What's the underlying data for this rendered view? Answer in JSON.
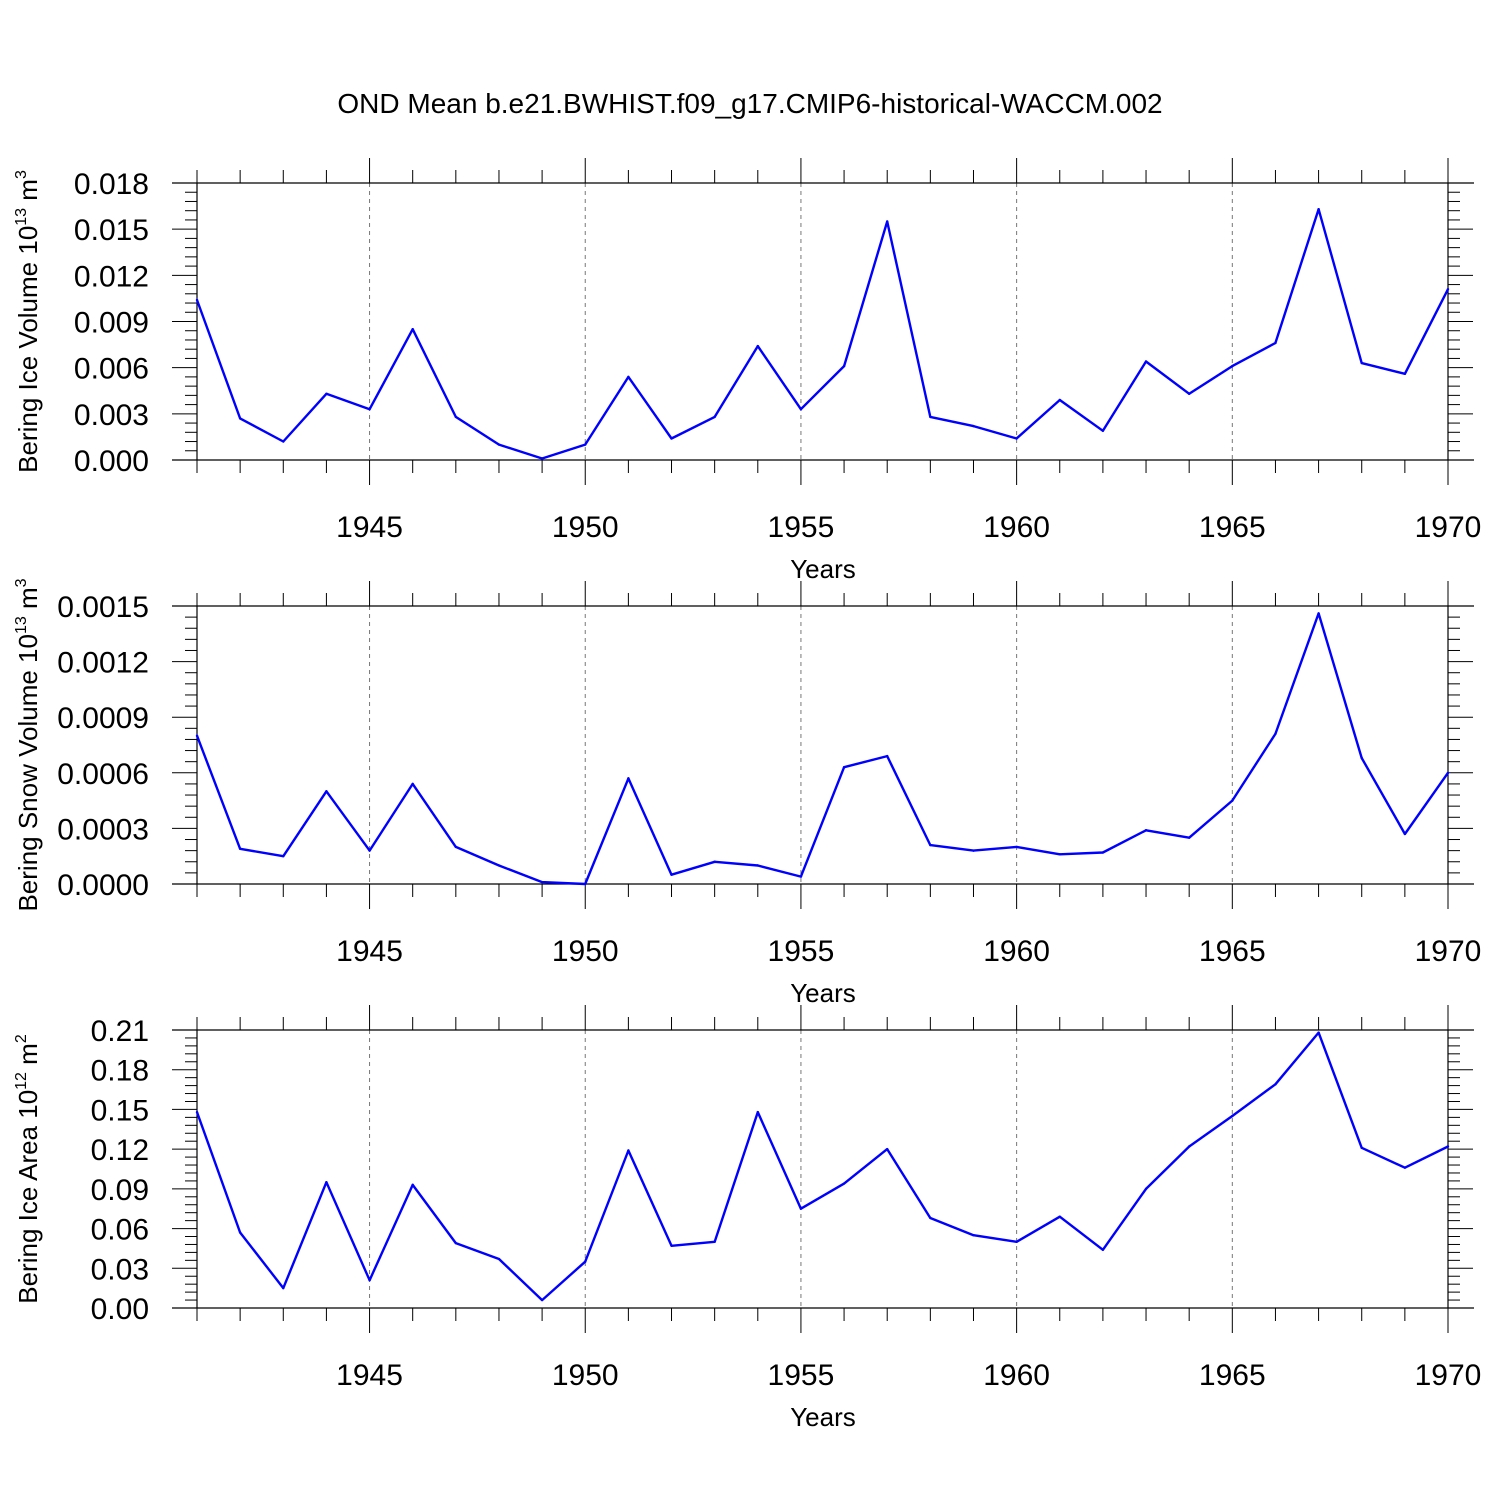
{
  "title": "OND Mean b.e21.BWHIST.f09_g17.CMIP6-historical-WACCM.002",
  "colors": {
    "line": "#0000ff",
    "axis": "#000000",
    "grid": "#777777"
  },
  "chart_data": [
    {
      "type": "line",
      "title": "",
      "xlabel": "Years",
      "ylabel": "Bering Ice Volume 10",
      "ylabel_sup1": "13",
      "ylabel_unit": " m",
      "ylabel_sup2": "3",
      "xlim": [
        1941,
        1970
      ],
      "ylim": [
        0,
        0.018
      ],
      "xticks": [
        "1945",
        "1950",
        "1955",
        "1960",
        "1965",
        "1970"
      ],
      "yticks": [
        "0.000",
        "0.003",
        "0.006",
        "0.009",
        "0.012",
        "0.015",
        "0.018"
      ],
      "grid": "vertical dashed at major x ticks",
      "x": [
        1941,
        1942,
        1943,
        1944,
        1945,
        1946,
        1947,
        1948,
        1949,
        1950,
        1951,
        1952,
        1953,
        1954,
        1955,
        1956,
        1957,
        1958,
        1959,
        1960,
        1961,
        1962,
        1963,
        1964,
        1965,
        1966,
        1967,
        1968,
        1969,
        1970
      ],
      "series": [
        {
          "values": [
            0.0104,
            0.0027,
            0.0012,
            0.0043,
            0.0033,
            0.0085,
            0.0028,
            0.001,
            0.0001,
            0.001,
            0.0054,
            0.0014,
            0.0028,
            0.0074,
            0.0033,
            0.0061,
            0.0155,
            0.0028,
            0.0022,
            0.0014,
            0.0039,
            0.0019,
            0.0064,
            0.0043,
            0.0061,
            0.0076,
            0.0163,
            0.0063,
            0.0056,
            0.0111
          ]
        }
      ]
    },
    {
      "type": "line",
      "title": "",
      "xlabel": "Years",
      "ylabel": "Bering Snow Volume 10",
      "ylabel_sup1": "13",
      "ylabel_unit": " m",
      "ylabel_sup2": "3",
      "xlim": [
        1941,
        1970
      ],
      "ylim": [
        0,
        0.0015
      ],
      "xticks": [
        "1945",
        "1950",
        "1955",
        "1960",
        "1965",
        "1970"
      ],
      "yticks": [
        "0.0000",
        "0.0003",
        "0.0006",
        "0.0009",
        "0.0012",
        "0.0015"
      ],
      "grid": "vertical dashed at major x ticks",
      "x": [
        1941,
        1942,
        1943,
        1944,
        1945,
        1946,
        1947,
        1948,
        1949,
        1950,
        1951,
        1952,
        1953,
        1954,
        1955,
        1956,
        1957,
        1958,
        1959,
        1960,
        1961,
        1962,
        1963,
        1964,
        1965,
        1966,
        1967,
        1968,
        1969,
        1970
      ],
      "series": [
        {
          "values": [
            0.0008,
            0.00019,
            0.00015,
            0.0005,
            0.00018,
            0.00054,
            0.0002,
            0.0001,
            1e-05,
            0.0,
            0.00057,
            5e-05,
            0.00012,
            0.0001,
            4e-05,
            0.00063,
            0.00069,
            0.00021,
            0.00018,
            0.0002,
            0.00016,
            0.00017,
            0.00029,
            0.00025,
            0.00045,
            0.00081,
            0.00146,
            0.00068,
            0.00027,
            0.0006
          ]
        }
      ]
    },
    {
      "type": "line",
      "title": "",
      "xlabel": "Years",
      "ylabel": "Bering Ice Area 10",
      "ylabel_sup1": "12",
      "ylabel_unit": " m",
      "ylabel_sup2": "2",
      "xlim": [
        1941,
        1970
      ],
      "ylim": [
        0,
        0.21
      ],
      "xticks": [
        "1945",
        "1950",
        "1955",
        "1960",
        "1965",
        "1970"
      ],
      "yticks": [
        "0.00",
        "0.03",
        "0.06",
        "0.09",
        "0.12",
        "0.15",
        "0.18",
        "0.21"
      ],
      "grid": "vertical dashed at major x ticks",
      "x": [
        1941,
        1942,
        1943,
        1944,
        1945,
        1946,
        1947,
        1948,
        1949,
        1950,
        1951,
        1952,
        1953,
        1954,
        1955,
        1956,
        1957,
        1958,
        1959,
        1960,
        1961,
        1962,
        1963,
        1964,
        1965,
        1966,
        1967,
        1968,
        1969,
        1970
      ],
      "series": [
        {
          "values": [
            0.148,
            0.057,
            0.015,
            0.095,
            0.021,
            0.093,
            0.049,
            0.037,
            0.006,
            0.035,
            0.119,
            0.047,
            0.05,
            0.148,
            0.075,
            0.094,
            0.12,
            0.068,
            0.055,
            0.05,
            0.069,
            0.044,
            0.09,
            0.122,
            0.145,
            0.169,
            0.208,
            0.121,
            0.106,
            0.122
          ]
        }
      ]
    }
  ]
}
